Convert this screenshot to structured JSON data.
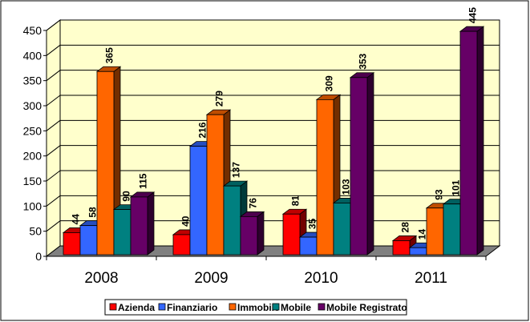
{
  "chart_data": {
    "type": "bar",
    "style": "3d-clustered-column",
    "categories": [
      "2008",
      "2009",
      "2010",
      "2011"
    ],
    "series": [
      {
        "name": "Azienda",
        "color": "#FF0000",
        "values": [
          44,
          40,
          81,
          28
        ]
      },
      {
        "name": "Finanziario",
        "color": "#3366FF",
        "values": [
          58,
          216,
          35,
          14
        ]
      },
      {
        "name": "Immobile",
        "color": "#FF6600",
        "values": [
          365,
          279,
          309,
          93
        ]
      },
      {
        "name": "Mobile",
        "color": "#008080",
        "values": [
          90,
          137,
          103,
          101
        ]
      },
      {
        "name": "Mobile Registrato",
        "color": "#660066",
        "values": [
          115,
          76,
          353,
          445
        ]
      }
    ],
    "yticks": [
      "0",
      "50",
      "100",
      "150",
      "200",
      "250",
      "300",
      "350",
      "400",
      "450"
    ],
    "ylim": [
      0,
      450
    ],
    "grid": true,
    "legend": "bottom",
    "wall_color": "#FFFFCC",
    "floor_color": "#808080"
  }
}
